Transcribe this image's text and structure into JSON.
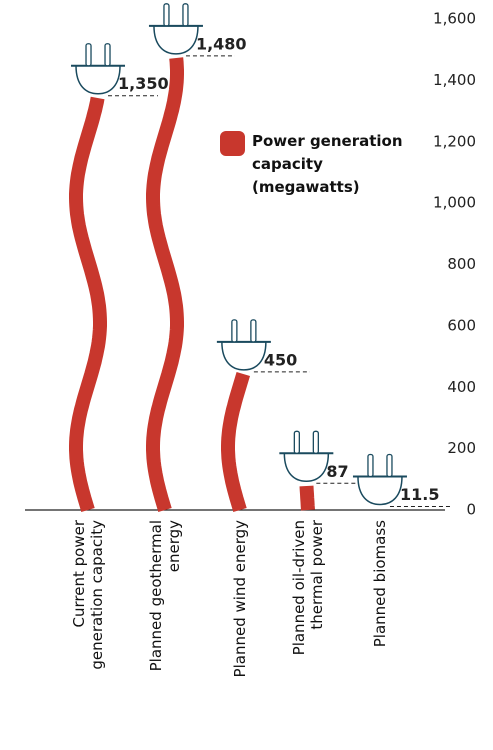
{
  "chart_data": {
    "type": "bar",
    "categories": [
      "Current power generation capacity",
      "Planned geothermal energy",
      "Planned wind energy",
      "Planned oil-driven thermal power",
      "Planned biomass"
    ],
    "series": [
      {
        "name": "Power generation capacity (megawatts)",
        "color": "#c8372d",
        "values": [
          1350,
          1480,
          450,
          87,
          11.5
        ],
        "value_labels": [
          "1,350",
          "1,480",
          "450",
          "87",
          "11.5"
        ]
      }
    ],
    "ylim": [
      0,
      1600
    ],
    "yticks": [
      0,
      200,
      400,
      600,
      800,
      {
        "value": 1000,
        "label": "1,000"
      },
      {
        "value": 1200,
        "label": "1,200"
      },
      {
        "value": 1400,
        "label": "1,400"
      },
      {
        "value": 1600,
        "label": "1,600"
      }
    ]
  }
}
